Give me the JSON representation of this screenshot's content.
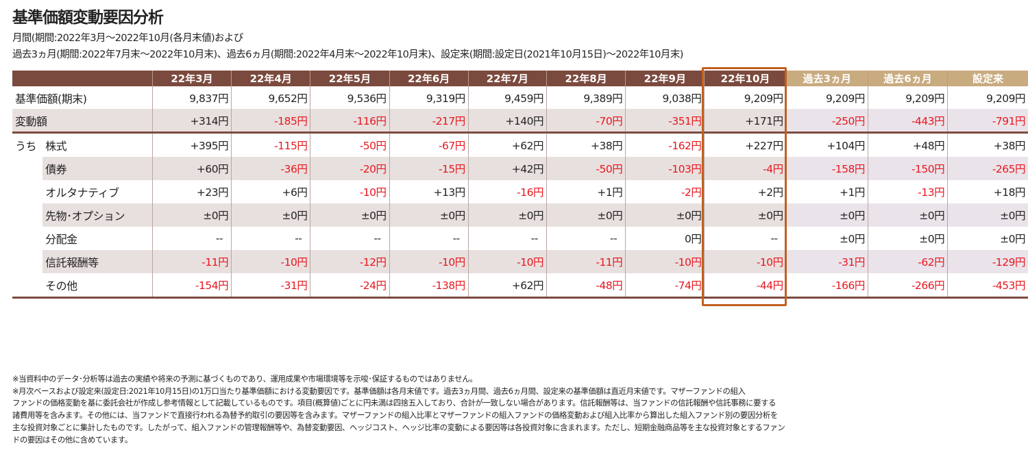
{
  "title": "基準価額変動要因分析",
  "subtitle_1": "月間(期間:2022年3月～2022年10月(各月末値)および",
  "subtitle_2": "過去3ヵ月(期間:2022年7月末～2022年10月末)、過去6ヵ月(期間:2022年4月末～2022年10月末)、設定来(期間:設定日(2021年10月15日)～2022年10月末)",
  "colors": {
    "header": "#7b4a3e",
    "header_past": "#c9ab80",
    "highlight": "#c0601e",
    "negative": "#e8161e"
  },
  "table": {
    "columns": [
      "22年3月",
      "22年4月",
      "22年5月",
      "22年6月",
      "22年7月",
      "22年8月",
      "22年9月",
      "22年10月",
      "過去3ヵ月",
      "過去6ヵ月",
      "設定来"
    ],
    "highlighted_column": "22年10月",
    "uchi_label": "うち",
    "rows": [
      {
        "label": "基準価額(期末)",
        "values": [
          "9,837円",
          "9,652円",
          "9,536円",
          "9,319円",
          "9,459円",
          "9,389円",
          "9,038円",
          "9,209円",
          "9,209円",
          "9,209円",
          "9,209円"
        ]
      },
      {
        "label": "変動額",
        "values": [
          "+314円",
          "-185円",
          "-116円",
          "-217円",
          "+140円",
          "-70円",
          "-351円",
          "+171円",
          "-250円",
          "-443円",
          "-791円"
        ]
      },
      {
        "label": "株式",
        "values": [
          "+395円",
          "-115円",
          "-50円",
          "-67円",
          "+62円",
          "+38円",
          "-162円",
          "+227円",
          "+104円",
          "+48円",
          "+38円"
        ]
      },
      {
        "label": "債券",
        "values": [
          "+60円",
          "-36円",
          "-20円",
          "-15円",
          "+42円",
          "-50円",
          "-103円",
          "-4円",
          "-158円",
          "-150円",
          "-265円"
        ]
      },
      {
        "label": "オルタナティブ",
        "values": [
          "+23円",
          "+6円",
          "-10円",
          "+13円",
          "-16円",
          "+1円",
          "-2円",
          "+2円",
          "+1円",
          "-13円",
          "+18円"
        ]
      },
      {
        "label": "先物･オプション",
        "values": [
          "±0円",
          "±0円",
          "±0円",
          "±0円",
          "±0円",
          "±0円",
          "±0円",
          "±0円",
          "±0円",
          "±0円",
          "±0円"
        ]
      },
      {
        "label": "分配金",
        "values": [
          "--",
          "--",
          "--",
          "--",
          "--",
          "--",
          "0円",
          "--",
          "±0円",
          "±0円",
          "±0円"
        ]
      },
      {
        "label": "信託報酬等",
        "values": [
          "-11円",
          "-10円",
          "-12円",
          "-10円",
          "-10円",
          "-11円",
          "-10円",
          "-10円",
          "-31円",
          "-62円",
          "-129円"
        ]
      },
      {
        "label": "その他",
        "values": [
          "-154円",
          "-31円",
          "-24円",
          "-138円",
          "+62円",
          "-48円",
          "-74円",
          "-44円",
          "-166円",
          "-266円",
          "-453円"
        ]
      }
    ]
  },
  "notes": [
    "※当資料中のデータ･分析等は過去の実績や将来の予測に基づくものであり、運用成果や市場環境等を示唆･保証するものではありません。",
    "※月次ベースおよび設定来(設定日:2021年10月15日)の1万口当たり基準価額における変動要因です。基準価額は各月末値です。過去3ヵ月間、過去6ヵ月間、設定来の基準価額は直近月末値です。マザーファンドの組入",
    "ファンドの価格変動を基に委託会社が作成し参考情報として記載しているものです。項目(概算値)ごとに円未満は四捨五入しており、合計が一致しない場合があります。信託報酬等は、当ファンドの信託報酬や信託事務に要する",
    "諸費用等を含みます。その他には、当ファンドで直接行われる為替予約取引の要因等を含みます。マザーファンドの組入比率とマザーファンドの組入ファンドの価格変動および組入比率から算出した組入ファンド別の要因分析を",
    "主な投資対象ごとに集計したものです。したがって、組入ファンドの管理報酬等や、為替変動要因、ヘッジコスト、ヘッジ比率の変動による要因等は各投資対象に含まれます。ただし、短期金融商品等を主な投資対象とするファン",
    "ドの要因はその他に含めています。"
  ]
}
